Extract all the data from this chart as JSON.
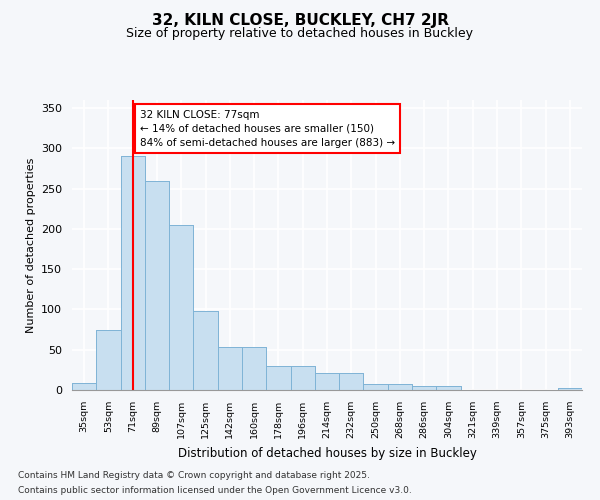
{
  "title1": "32, KILN CLOSE, BUCKLEY, CH7 2JR",
  "title2": "Size of property relative to detached houses in Buckley",
  "xlabel": "Distribution of detached houses by size in Buckley",
  "ylabel": "Number of detached properties",
  "bins": [
    "35sqm",
    "53sqm",
    "71sqm",
    "89sqm",
    "107sqm",
    "125sqm",
    "142sqm",
    "160sqm",
    "178sqm",
    "196sqm",
    "214sqm",
    "232sqm",
    "250sqm",
    "268sqm",
    "286sqm",
    "304sqm",
    "321sqm",
    "339sqm",
    "357sqm",
    "375sqm",
    "393sqm"
  ],
  "bar_values": [
    9,
    75,
    290,
    260,
    205,
    98,
    53,
    53,
    30,
    30,
    21,
    21,
    8,
    8,
    5,
    5,
    0,
    0,
    0,
    0,
    2
  ],
  "bar_color": "#c8dff0",
  "bar_edge_color": "#7ab0d4",
  "property_bin_index": 2,
  "red_line_label": "32 KILN CLOSE: 77sqm",
  "annotation_line1": "← 14% of detached houses are smaller (150)",
  "annotation_line2": "84% of semi-detached houses are larger (883) →",
  "ylim": [
    0,
    360
  ],
  "yticks": [
    0,
    50,
    100,
    150,
    200,
    250,
    300,
    350
  ],
  "footer1": "Contains HM Land Registry data © Crown copyright and database right 2025.",
  "footer2": "Contains public sector information licensed under the Open Government Licence v3.0.",
  "bg_color": "#f5f7fa",
  "grid_color": "#ffffff"
}
